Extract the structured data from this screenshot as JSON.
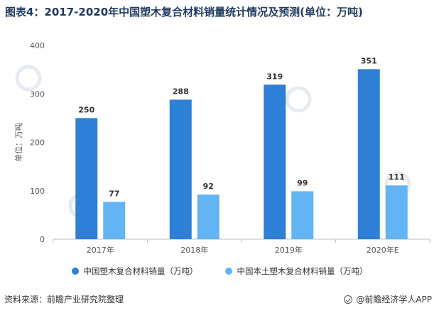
{
  "title": "图表4：2017-2020年中国塑木复合材料销量统计情况及预测(单位：万吨)",
  "source": "资料来源：前瞻产业研究院整理",
  "brand": "@前瞻经济学人APP",
  "colors": {
    "series1": "#2e7fd6",
    "series2": "#62b4f5",
    "axis": "#bfbfbf",
    "watermark": "#e6ebf1"
  },
  "chart_data": {
    "type": "bar",
    "title": "图表4：2017-2020年中国塑木复合材料销量统计情况及预测(单位：万吨)",
    "xlabel": "",
    "ylabel": "单位：万吨",
    "ylim": [
      0,
      400
    ],
    "yticks": [
      0,
      100,
      200,
      300,
      400
    ],
    "categories": [
      "2017年",
      "2018年",
      "2019年",
      "2020年E"
    ],
    "series": [
      {
        "name": "中国塑木复合材料销量（万吨）",
        "values": [
          250,
          288,
          319,
          351
        ]
      },
      {
        "name": "中国本土塑木复合材料销量（万吨）",
        "values": [
          77,
          92,
          99,
          111
        ]
      }
    ],
    "grid": false,
    "legend": "bottom"
  }
}
